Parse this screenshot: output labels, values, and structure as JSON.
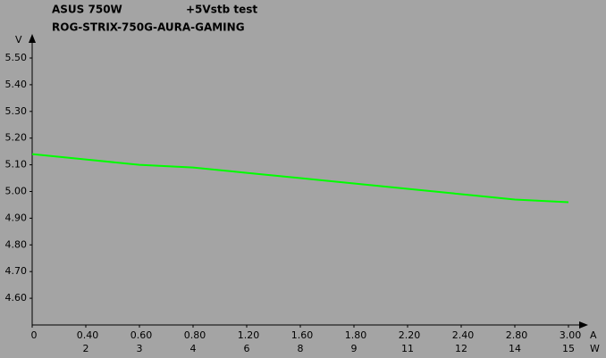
{
  "chart_data": {
    "type": "line",
    "title": "ASUS 750W",
    "subtitle": "+5Vstb test",
    "model": "ROG-STRIX-750G-AURA-GAMING",
    "y_label": "V",
    "x_label": "A",
    "x2_label": "W",
    "categories": [
      "0",
      "0.40",
      "0.60",
      "0.80",
      "1.20",
      "1.60",
      "1.80",
      "2.20",
      "2.40",
      "2.80",
      "3.00"
    ],
    "categories2": [
      null,
      "2",
      "3",
      "4",
      "6",
      "8",
      "9",
      "11",
      "12",
      "14",
      "15"
    ],
    "series": [
      {
        "color": "#00ff00",
        "values": [
          5.14,
          5.12,
          5.1,
          5.09,
          5.07,
          5.05,
          5.03,
          5.01,
          4.99,
          4.97,
          4.96
        ]
      }
    ],
    "ylim": [
      4.5,
      5.5
    ],
    "yticks": [
      {
        "value": 4.6,
        "label": "4.60"
      },
      {
        "value": 4.7,
        "label": "4.70"
      },
      {
        "value": 4.8,
        "label": "4.80"
      },
      {
        "value": 4.9,
        "label": "4.90"
      },
      {
        "value": 5.0,
        "label": "5.00"
      },
      {
        "value": 5.1,
        "label": "5.10"
      },
      {
        "value": 5.2,
        "label": "5.20"
      },
      {
        "value": 5.3,
        "label": "5.30"
      },
      {
        "value": 5.4,
        "label": "5.40"
      },
      {
        "value": 5.5,
        "label": "5.50"
      }
    ]
  }
}
